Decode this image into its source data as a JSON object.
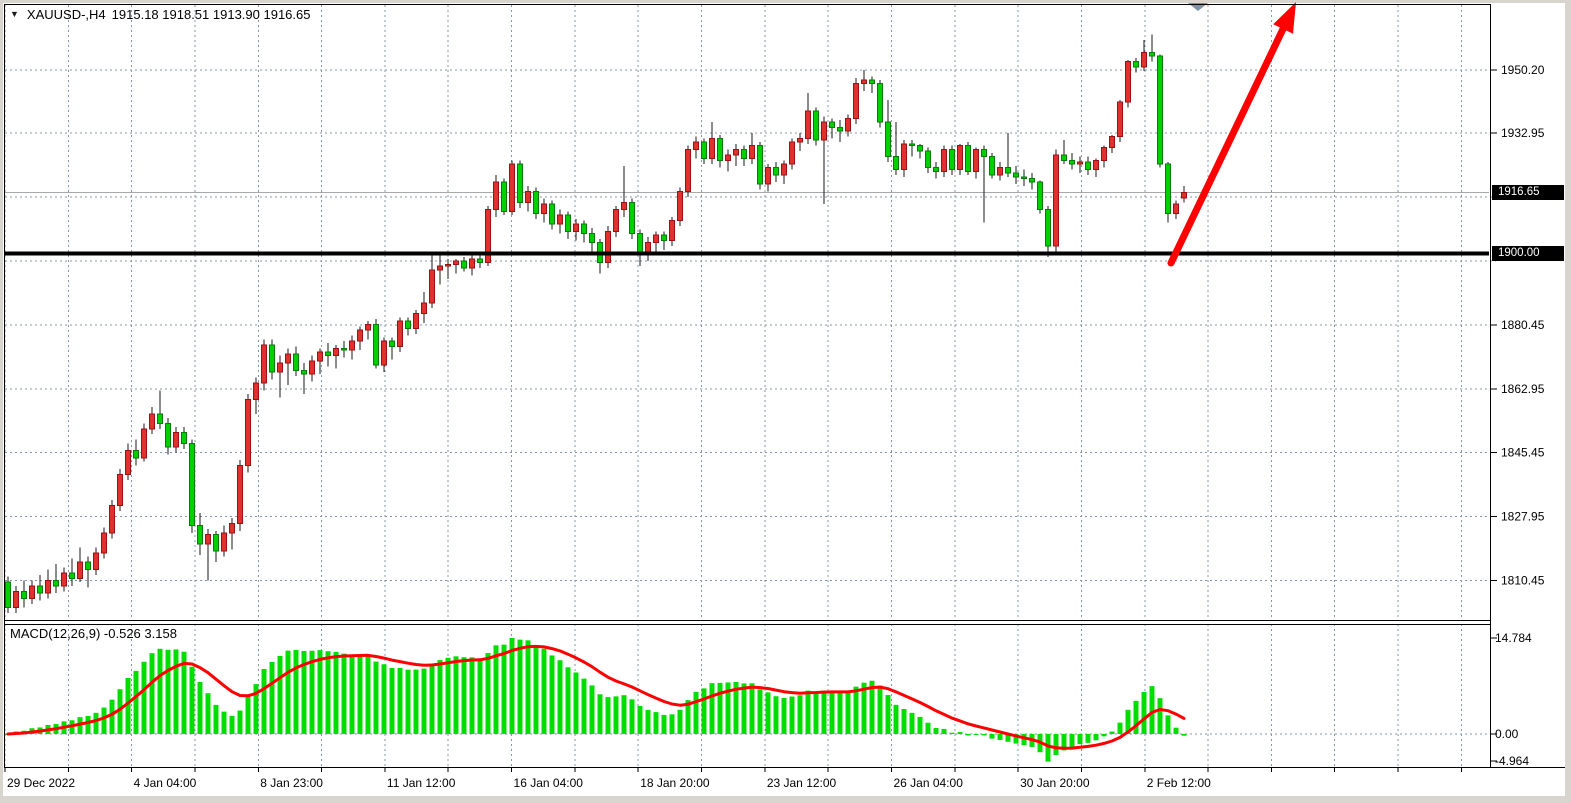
{
  "header": {
    "symbol_period": "XAUUSD-,H4",
    "ohlc_line": "1915.18 1918.51 1913.90 1916.65"
  },
  "icons": {
    "symbol_dropdown_glyph": "▼"
  },
  "price_axis": {
    "visible_labels": [
      "1950.20",
      "1932.95",
      "1880.45",
      "1862.95",
      "1845.45",
      "1827.95",
      "1810.45"
    ],
    "grid_prices": [
      1950.2,
      1932.95,
      1915.45,
      1897.95,
      1880.45,
      1862.95,
      1845.45,
      1827.95,
      1810.45
    ],
    "current_badge": "1916.65",
    "level_badge": "1900.00"
  },
  "time_axis": {
    "labels": [
      "29 Dec 2022",
      "4 Jan 04:00",
      "8 Jan 23:00",
      "11 Jan 12:00",
      "16 Jan 04:00",
      "18 Jan 20:00",
      "23 Jan 12:00",
      "26 Jan 04:00",
      "30 Jan 20:00",
      "2 Feb 12:00"
    ]
  },
  "macd_panel": {
    "label": "MACD(12,26,9) -0.526 3.158",
    "value_main": "-0.526",
    "value_signal": "3.158",
    "axis_labels": [
      "14.784",
      "0.00",
      "-4.964"
    ]
  },
  "annotations": {
    "level_line": {
      "price": "1900.00",
      "color": "#000000",
      "thickness": 4
    },
    "trend_arrow": {
      "direction": "up",
      "color": "#ff0000"
    },
    "scrollbar_marker": {
      "shape": "triangle-down",
      "color": "#8094a8"
    }
  },
  "colors": {
    "bull_candle": "#e03030",
    "bull_stroke": "#9c1212",
    "bear_candle": "#00d000",
    "bear_stroke": "#067d06",
    "wick": "#1a1a1a",
    "histogram": "#00dd00",
    "signal_line": "#ff0000",
    "grid": "#8495a6",
    "current_price_line": "#a8a8a8",
    "badge_bg": "#000000",
    "badge_text": "#ffffff"
  },
  "chart_data": {
    "type": "candlestick",
    "symbol": "XAUUSD-",
    "timeframe": "H4",
    "title": "XAUUSD-,H4 1915.18 1918.51 1913.90 1916.65",
    "ylim": [
      1800,
      1969
    ],
    "grid": true,
    "y_ticks": [
      1950.2,
      1932.95,
      1915.45,
      1897.95,
      1880.45,
      1862.95,
      1845.45,
      1827.95,
      1810.45
    ],
    "x_tick_labels": [
      "29 Dec 2022",
      "4 Jan 04:00",
      "8 Jan 23:00",
      "11 Jan 12:00",
      "16 Jan 04:00",
      "18 Jan 20:00",
      "23 Jan 12:00",
      "26 Jan 04:00",
      "30 Jan 20:00",
      "2 Feb 12:00"
    ],
    "current_price": 1916.65,
    "support_level": 1900.0,
    "indicator": {
      "type": "MACD",
      "fast": 12,
      "slow": 26,
      "signal": 9,
      "last_main": -0.526,
      "last_signal": 3.158,
      "scale_max": 14.784,
      "scale_min": -4.964
    },
    "candles": [
      [
        1810,
        1811.5,
        1801.5,
        1803
      ],
      [
        1803,
        1809,
        1801.5,
        1807.5
      ],
      [
        1807.5,
        1810.5,
        1803,
        1805.5
      ],
      [
        1805.5,
        1810.5,
        1804,
        1809
      ],
      [
        1809,
        1812,
        1805,
        1807
      ],
      [
        1807,
        1813.5,
        1805.5,
        1810.5
      ],
      [
        1810.5,
        1815,
        1807,
        1809
      ],
      [
        1809,
        1814,
        1807.5,
        1812.5
      ],
      [
        1812.5,
        1816.5,
        1809,
        1811
      ],
      [
        1811,
        1819.5,
        1810,
        1815.5
      ],
      [
        1815.5,
        1817,
        1808.5,
        1813.5
      ],
      [
        1813.5,
        1819.5,
        1812,
        1818
      ],
      [
        1818,
        1825,
        1816.5,
        1823.5
      ],
      [
        1823.5,
        1832.5,
        1822,
        1831
      ],
      [
        1831,
        1841,
        1829.5,
        1839.5
      ],
      [
        1839.5,
        1848,
        1838,
        1846
      ],
      [
        1846,
        1849,
        1842,
        1844
      ],
      [
        1844,
        1853.5,
        1843,
        1852
      ],
      [
        1852,
        1858,
        1850.5,
        1856
      ],
      [
        1856,
        1862.5,
        1852,
        1853.5
      ],
      [
        1853.5,
        1855,
        1845,
        1847
      ],
      [
        1847,
        1852.5,
        1845.5,
        1851
      ],
      [
        1851,
        1852.5,
        1846.5,
        1848
      ],
      [
        1848,
        1849,
        1823.5,
        1825.5
      ],
      [
        1825.5,
        1829,
        1817.5,
        1820.5
      ],
      [
        1820.5,
        1824.5,
        1810.5,
        1823
      ],
      [
        1823,
        1824,
        1815.5,
        1818.5
      ],
      [
        1818.5,
        1825.5,
        1817,
        1823.5
      ],
      [
        1823.5,
        1827.5,
        1819,
        1826
      ],
      [
        1826,
        1843.5,
        1824,
        1842
      ],
      [
        1842,
        1861.5,
        1840,
        1860
      ],
      [
        1860,
        1866,
        1856,
        1864.5
      ],
      [
        1864.5,
        1876.5,
        1862.5,
        1875
      ],
      [
        1875,
        1876.5,
        1865.5,
        1867.5
      ],
      [
        1867.5,
        1872,
        1860.5,
        1870
      ],
      [
        1870,
        1874,
        1864,
        1872.5
      ],
      [
        1872.5,
        1874.5,
        1866.5,
        1868
      ],
      [
        1868,
        1870,
        1861.5,
        1867
      ],
      [
        1867,
        1872,
        1865,
        1870.5
      ],
      [
        1870.5,
        1874,
        1867,
        1873
      ],
      [
        1873,
        1875.5,
        1869,
        1872
      ],
      [
        1872,
        1875,
        1868.5,
        1874
      ],
      [
        1874,
        1876,
        1871.5,
        1873.5
      ],
      [
        1873.5,
        1877.5,
        1871,
        1876
      ],
      [
        1876,
        1880,
        1873.5,
        1879
      ],
      [
        1879,
        1881.5,
        1876.5,
        1880.5
      ],
      [
        1880.5,
        1882,
        1868.5,
        1869.5
      ],
      [
        1869.5,
        1877,
        1867.5,
        1876
      ],
      [
        1876,
        1877,
        1871,
        1874.5
      ],
      [
        1874.5,
        1882.5,
        1873,
        1881.5
      ],
      [
        1881.5,
        1882.5,
        1877.5,
        1879.5
      ],
      [
        1879.5,
        1884.5,
        1878,
        1883.5
      ],
      [
        1883.5,
        1889.5,
        1881,
        1886.5
      ],
      [
        1886.5,
        1899.5,
        1885,
        1895.5
      ],
      [
        1895.5,
        1900,
        1891.5,
        1896.5
      ],
      [
        1896.5,
        1898.5,
        1893,
        1897
      ],
      [
        1897,
        1898.5,
        1894.5,
        1898
      ],
      [
        1898,
        1899,
        1895,
        1896
      ],
      [
        1896,
        1899.5,
        1894,
        1898.5
      ],
      [
        1898.5,
        1900.5,
        1896,
        1897.5
      ],
      [
        1897.5,
        1913,
        1896.5,
        1912
      ],
      [
        1912,
        1921.5,
        1910,
        1919.5
      ],
      [
        1919.5,
        1920.5,
        1910.5,
        1911.5
      ],
      [
        1911.5,
        1925.5,
        1910.5,
        1924.5
      ],
      [
        1924.5,
        1925.5,
        1912.5,
        1914
      ],
      [
        1914,
        1918.5,
        1911.5,
        1917
      ],
      [
        1917,
        1918,
        1909.5,
        1911
      ],
      [
        1911,
        1915,
        1908.5,
        1913.5
      ],
      [
        1913.5,
        1914.5,
        1906.5,
        1908
      ],
      [
        1908,
        1912,
        1905.5,
        1910.5
      ],
      [
        1910.5,
        1911.5,
        1904,
        1906
      ],
      [
        1906,
        1909.5,
        1903.5,
        1908
      ],
      [
        1908,
        1909,
        1903,
        1905.5
      ],
      [
        1905.5,
        1907,
        1900,
        1903
      ],
      [
        1903,
        1904,
        1894.5,
        1897.5
      ],
      [
        1897.5,
        1907.5,
        1896,
        1906
      ],
      [
        1906,
        1913,
        1904.5,
        1912
      ],
      [
        1912,
        1924,
        1910,
        1914
      ],
      [
        1914,
        1915,
        1904,
        1905.5
      ],
      [
        1905.5,
        1906.5,
        1896.5,
        1900
      ],
      [
        1900,
        1904.5,
        1898,
        1903
      ],
      [
        1903,
        1906,
        1900.5,
        1905
      ],
      [
        1905,
        1906,
        1901,
        1903.5
      ],
      [
        1903.5,
        1910,
        1902,
        1909
      ],
      [
        1909,
        1918,
        1907.5,
        1917
      ],
      [
        1917,
        1929.5,
        1915.5,
        1928.5
      ],
      [
        1928.5,
        1932,
        1926,
        1930.5
      ],
      [
        1930.5,
        1931.5,
        1924.5,
        1926
      ],
      [
        1926,
        1936,
        1924.5,
        1931.5
      ],
      [
        1931.5,
        1932.5,
        1923.5,
        1925.5
      ],
      [
        1925.5,
        1928.5,
        1922.5,
        1927
      ],
      [
        1927,
        1930,
        1924,
        1928.5
      ],
      [
        1928.5,
        1929.5,
        1924,
        1926
      ],
      [
        1926,
        1933,
        1924.5,
        1929.5
      ],
      [
        1929.5,
        1930.5,
        1917.5,
        1919
      ],
      [
        1919,
        1924.5,
        1917,
        1923.5
      ],
      [
        1923.5,
        1925,
        1919.5,
        1921.5
      ],
      [
        1921.5,
        1925.5,
        1919,
        1924.5
      ],
      [
        1924.5,
        1931.5,
        1923,
        1930.5
      ],
      [
        1930.5,
        1933,
        1928,
        1931.5
      ],
      [
        1931.5,
        1944,
        1930,
        1939
      ],
      [
        1939,
        1940,
        1929.5,
        1931
      ],
      [
        1931,
        1937.5,
        1913.5,
        1936
      ],
      [
        1936,
        1937,
        1931.5,
        1934.5
      ],
      [
        1934.5,
        1936.5,
        1930.5,
        1933.5
      ],
      [
        1933.5,
        1938,
        1932,
        1937
      ],
      [
        1937,
        1948,
        1935.5,
        1946.5
      ],
      [
        1946.5,
        1950.2,
        1944.5,
        1947.5
      ],
      [
        1947.5,
        1948.5,
        1944,
        1946.5
      ],
      [
        1946.5,
        1947.5,
        1934.5,
        1936
      ],
      [
        1936,
        1942,
        1925,
        1926.5
      ],
      [
        1926.5,
        1936,
        1921.5,
        1923
      ],
      [
        1923,
        1931,
        1921,
        1930
      ],
      [
        1930,
        1931,
        1926.5,
        1929.5
      ],
      [
        1929.5,
        1930,
        1926,
        1928
      ],
      [
        1928,
        1929,
        1922,
        1923.5
      ],
      [
        1923.5,
        1925,
        1920.5,
        1922.5
      ],
      [
        1922.5,
        1929.5,
        1921,
        1928.5
      ],
      [
        1928.5,
        1929.5,
        1921.5,
        1923
      ],
      [
        1923,
        1930,
        1921.5,
        1929.5
      ],
      [
        1929.5,
        1930.5,
        1921.5,
        1922.5
      ],
      [
        1922.5,
        1929,
        1920.5,
        1928.5
      ],
      [
        1928.5,
        1929.5,
        1908.5,
        1926.5
      ],
      [
        1926.5,
        1927.5,
        1920.5,
        1921.5
      ],
      [
        1921.5,
        1925,
        1920,
        1923.5
      ],
      [
        1923.5,
        1933,
        1921,
        1922
      ],
      [
        1922,
        1924,
        1919,
        1921
      ],
      [
        1921,
        1923,
        1918.5,
        1920.5
      ],
      [
        1920.5,
        1922,
        1917.5,
        1919.5
      ],
      [
        1919.5,
        1920,
        1911,
        1912
      ],
      [
        1912,
        1913,
        1899,
        1902
      ],
      [
        1902,
        1928.5,
        1900.5,
        1927
      ],
      [
        1927,
        1931,
        1924.5,
        1925.5
      ],
      [
        1925.5,
        1927.5,
        1923,
        1924.5
      ],
      [
        1924.5,
        1926.5,
        1922,
        1925
      ],
      [
        1925,
        1926.5,
        1921.5,
        1923
      ],
      [
        1923,
        1926,
        1921,
        1925.5
      ],
      [
        1925.5,
        1929.5,
        1923.5,
        1929
      ],
      [
        1929,
        1932.5,
        1927.5,
        1932
      ],
      [
        1932,
        1942,
        1930.5,
        1941.5
      ],
      [
        1941.5,
        1953,
        1940,
        1952.5
      ],
      [
        1952.5,
        1953.5,
        1949.5,
        1951
      ],
      [
        1951,
        1958.5,
        1950,
        1955
      ],
      [
        1955,
        1959.9,
        1952.5,
        1954
      ],
      [
        1954,
        1954.5,
        1923.5,
        1924.5
      ],
      [
        1924.5,
        1925,
        1908.5,
        1911
      ],
      [
        1911,
        1914.5,
        1909.5,
        1913.5
      ],
      [
        1915.18,
        1918.51,
        1913.9,
        1916.65
      ]
    ]
  }
}
